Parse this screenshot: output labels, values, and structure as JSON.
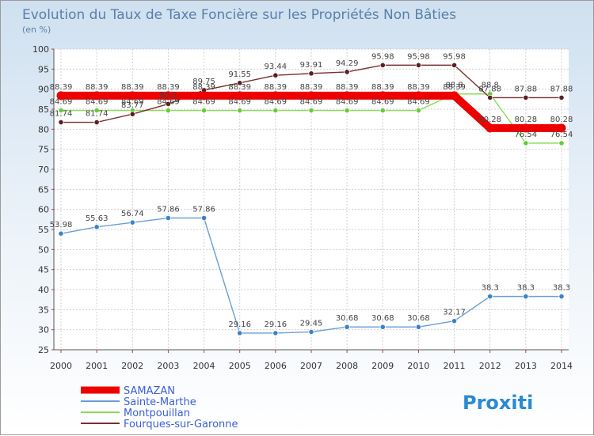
{
  "chart_data": {
    "type": "line",
    "title": "Evolution du Taux de Taxe Foncière sur les Propriétés Non Bâties",
    "subtitle": "(en %)",
    "x": [
      2000,
      2001,
      2002,
      2003,
      2004,
      2005,
      2006,
      2007,
      2008,
      2009,
      2010,
      2011,
      2012,
      2013,
      2014
    ],
    "ylim": [
      25,
      100
    ],
    "yticks": [
      25,
      30,
      35,
      40,
      45,
      50,
      55,
      60,
      65,
      70,
      75,
      80,
      85,
      90,
      95,
      100
    ],
    "grid": true,
    "legend_position": "bottom-left",
    "series": [
      {
        "name": "Sainte-Marthe",
        "color": "#6a9fd4",
        "marker": "#3a82c8",
        "values": [
          53.98,
          55.63,
          56.74,
          57.86,
          57.86,
          29.16,
          29.16,
          29.45,
          30.68,
          30.68,
          30.68,
          32.17,
          38.3,
          38.3,
          38.3
        ],
        "labels": [
          "53.98",
          "55.63",
          "56.74",
          "57.86",
          "57.86",
          "29.16",
          "29.16",
          "29.45",
          "30.68",
          "30.68",
          "30.68",
          "32.17",
          "38.3",
          "38.3",
          "38.3"
        ]
      },
      {
        "name": "Montpouillan",
        "color": "#88dd55",
        "marker": "#66cc33",
        "values": [
          84.69,
          84.69,
          84.69,
          84.69,
          84.69,
          84.69,
          84.69,
          84.69,
          84.69,
          84.69,
          84.69,
          88.8,
          88.8,
          76.54,
          76.54
        ],
        "labels": [
          "84.69",
          "84.69",
          "84.69",
          "84.69",
          "84.69",
          "84.69",
          "84.69",
          "84.69",
          "84.69",
          "84.69",
          "84.69",
          "88.8",
          "88.8",
          "76.54",
          "76.54"
        ]
      },
      {
        "name": "Fourques-sur-Garonne",
        "color": "#7a2e2e",
        "marker": "#5a1e1e",
        "values": [
          81.74,
          81.74,
          83.77,
          86.3,
          89.75,
          91.55,
          93.44,
          93.91,
          94.29,
          95.98,
          95.98,
          95.98,
          87.88,
          87.88,
          87.88
        ],
        "labels": [
          "81.74",
          "81.74",
          "83.77",
          "86.3",
          "89.75",
          "91.55",
          "93.44",
          "93.91",
          "94.29",
          "95.98",
          "95.98",
          "95.98",
          "87.88",
          "87.88",
          "87.88"
        ]
      },
      {
        "name": "SAMAZAN",
        "color": "#ee0000",
        "marker": "#ee0000",
        "thick": true,
        "values": [
          88.39,
          88.39,
          88.39,
          88.39,
          88.39,
          88.39,
          88.39,
          88.39,
          88.39,
          88.39,
          88.39,
          88.39,
          80.28,
          80.28,
          80.28
        ],
        "labels": [
          "88.39",
          "88.39",
          "88.39",
          "88.39",
          "88.39",
          "88.39",
          "88.39",
          "88.39",
          "88.39",
          "88.39",
          "88.39",
          "88.39",
          "80.28",
          "80.28",
          "80.28"
        ]
      }
    ],
    "legend": [
      "SAMAZAN",
      "Sainte-Marthe",
      "Montpouillan",
      "Fourques-sur-Garonne"
    ]
  },
  "branding": {
    "logo_text": "Proxiti"
  }
}
